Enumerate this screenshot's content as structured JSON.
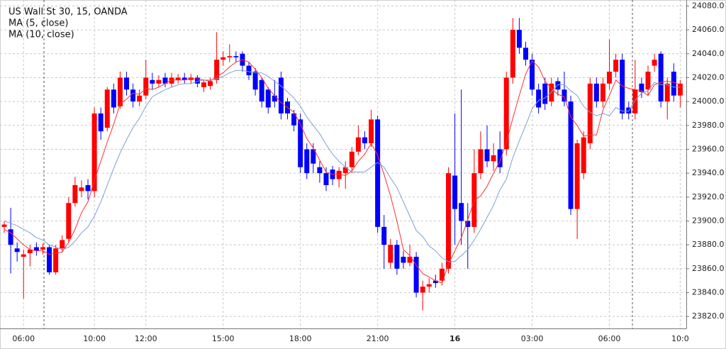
{
  "chart_data": {
    "type": "candlestick",
    "title": "US Wall St 30, 15, OANDA",
    "categories": [
      null,
      null,
      null,
      "06:00",
      null,
      null,
      null,
      null,
      null,
      null,
      null,
      null,
      null,
      null,
      "10:00",
      null,
      null,
      null,
      null,
      null,
      null,
      null,
      "12:00",
      null,
      null,
      null,
      null,
      null,
      null,
      null,
      null,
      null,
      null,
      null,
      "15:00",
      null,
      null,
      null,
      null,
      null,
      null,
      null,
      null,
      null,
      null,
      null,
      "18:00",
      null,
      null,
      null,
      null,
      null,
      null,
      null,
      null,
      null,
      null,
      null,
      "21:00",
      null,
      null,
      null,
      null,
      null,
      null,
      null,
      null,
      null,
      null,
      null,
      "16",
      null,
      null,
      null,
      null,
      null,
      null,
      null,
      null,
      null,
      null,
      null,
      "03:00",
      null,
      null,
      null,
      null,
      null,
      null,
      null,
      null,
      null,
      null,
      null,
      "06:00",
      null,
      null,
      null,
      null,
      null,
      null,
      null,
      null,
      null,
      null,
      "10:0"
    ],
    "open": [
      23895,
      23893,
      23877,
      23870,
      23873,
      23878,
      23876,
      23878,
      23857,
      23877,
      23885,
      23915,
      23925,
      23930,
      23925,
      23990,
      23978,
      24010,
      23996,
      24020,
      24010,
      24000,
      24005,
      24018,
      24015,
      24020,
      24015,
      24018,
      24020,
      24018,
      24020,
      24012,
      24013,
      24018,
      24035,
      24037,
      24038,
      24040,
      24030,
      24025,
      24018,
      24010,
      24005,
      24020,
      24000,
      23990,
      23985,
      23960,
      23960,
      23945,
      23940,
      23943,
      23935,
      23940,
      23945,
      23958,
      23970,
      23965,
      23985,
      23895,
      23865,
      23880,
      23870,
      23865,
      23870,
      23840,
      23845,
      23850,
      23850,
      23860,
      23938,
      23915,
      23900,
      23895,
      23940,
      23960,
      23950,
      23960,
      23960,
      24020,
      24060,
      24045,
      24035,
      24010,
      24015,
      24000,
      24017,
      24010,
      24000,
      23910,
      23940,
      23965,
      24015,
      24000,
      24015,
      24025,
      24035,
      23995,
      23990,
      24015,
      24010,
      24030,
      24040,
      24000,
      24025,
      24005
    ],
    "high": [
      23900,
      23911,
      23882,
      23876,
      23880,
      23882,
      23881,
      23880,
      23880,
      23888,
      23920,
      23937,
      23934,
      23935,
      23995,
      23995,
      24012,
      24015,
      24025,
      24025,
      24015,
      24010,
      24035,
      24024,
      24022,
      24024,
      24024,
      24023,
      24024,
      24023,
      24022,
      24018,
      24020,
      24058,
      24042,
      24048,
      24042,
      24042,
      24033,
      24028,
      24020,
      24012,
      24018,
      24025,
      24003,
      23993,
      23990,
      23965,
      23965,
      23950,
      23945,
      23946,
      23945,
      23950,
      23962,
      23980,
      23975,
      23993,
      23988,
      23905,
      23885,
      23884,
      23875,
      23880,
      23874,
      23850,
      23852,
      23855,
      23865,
      23945,
      23990,
      24010,
      23915,
      23960,
      23975,
      23980,
      23965,
      23975,
      24025,
      24070,
      24070,
      24050,
      24040,
      24015,
      24020,
      24020,
      24020,
      24025,
      24005,
      23968,
      23975,
      24020,
      24020,
      24020,
      24052,
      24040,
      24040,
      24000,
      24035,
      24020,
      24030,
      24040,
      24042,
      24020,
      24032,
      24018
    ],
    "low": [
      23890,
      23856,
      23866,
      23835,
      23862,
      23871,
      23872,
      23855,
      23855,
      23874,
      23882,
      23912,
      23920,
      23918,
      23920,
      23968,
      23975,
      23990,
      23994,
      24005,
      23995,
      23996,
      24002,
      24010,
      24012,
      24012,
      24012,
      24015,
      24015,
      24015,
      24012,
      24008,
      24010,
      24015,
      24030,
      24033,
      24033,
      24025,
      24018,
      24005,
      23995,
      23990,
      23995,
      23985,
      23985,
      23975,
      23940,
      23935,
      23940,
      23932,
      23925,
      23930,
      23928,
      23927,
      23940,
      23955,
      23960,
      23962,
      23890,
      23860,
      23860,
      23855,
      23860,
      23862,
      23836,
      23825,
      23840,
      23844,
      23846,
      23856,
      23880,
      23880,
      23860,
      23890,
      23935,
      23945,
      23942,
      23940,
      23955,
      24015,
      24040,
      24030,
      24005,
      23990,
      23993,
      23996,
      24005,
      23996,
      23905,
      23885,
      23935,
      23960,
      23995,
      23995,
      24010,
      24020,
      23985,
      23985,
      23985,
      24003,
      24005,
      24025,
      23995,
      23985,
      24000,
      23995
    ],
    "close": [
      23897,
      23880,
      23874,
      23872,
      23876,
      23875,
      23878,
      23857,
      23877,
      23884,
      23915,
      23930,
      23928,
      23925,
      23990,
      23975,
      24010,
      23995,
      24020,
      24010,
      24000,
      24005,
      24020,
      24015,
      24018,
      24015,
      24020,
      24020,
      24018,
      24020,
      24015,
      24016,
      24017,
      24035,
      24037,
      24038,
      24037,
      24030,
      24022,
      24010,
      24000,
      23995,
      24000,
      23990,
      23990,
      23980,
      23945,
      23940,
      23948,
      23940,
      23930,
      23935,
      23942,
      23945,
      23958,
      23970,
      23965,
      23985,
      23895,
      23880,
      23880,
      23860,
      23865,
      23870,
      23840,
      23845,
      23847,
      23848,
      23860,
      23940,
      23910,
      23900,
      23895,
      23940,
      23960,
      23950,
      23955,
      23945,
      24020,
      24060,
      24045,
      24035,
      24010,
      23995,
      23998,
      24015,
      24010,
      24000,
      23910,
      23965,
      23970,
      24015,
      24000,
      24015,
      24025,
      24035,
      23990,
      23990,
      24010,
      24008,
      24025,
      24035,
      24000,
      24015,
      24005,
      24015
    ],
    "up_color": "#ff0000",
    "down_color": "#0000ff",
    "series": [
      {
        "name": "MA (5, close)",
        "color": "#ff3030",
        "values": [
          23893,
          23890,
          23885,
          23880,
          23876,
          23875,
          23875,
          23872,
          23873,
          23874,
          23882,
          23893,
          23907,
          23916,
          23934,
          23950,
          23966,
          23981,
          23998,
          24002,
          24007,
          24006,
          24011,
          24010,
          24012,
          24015,
          24018,
          24018,
          24018,
          24019,
          24019,
          24018,
          24017,
          24021,
          24024,
          24029,
          24033,
          24035,
          24033,
          24027,
          24020,
          24011,
          24005,
          23999,
          23995,
          23991,
          23981,
          23969,
          23961,
          23951,
          23941,
          23939,
          23939,
          23938,
          23942,
          23950,
          23956,
          23965,
          23955,
          23939,
          23921,
          23900,
          23876,
          23871,
          23863,
          23856,
          23853,
          23850,
          23848,
          23864,
          23875,
          23886,
          23901,
          23917,
          23921,
          23929,
          23940,
          23950,
          23966,
          23986,
          24005,
          24023,
          24034,
          24029,
          24017,
          24011,
          24006,
          24004,
          23987,
          23980,
          23971,
          23972,
          23972,
          23993,
          24005,
          24018,
          24013,
          24011,
          24010,
          24009,
          24005,
          24014,
          24016,
          24017,
          24016,
          24014
        ]
      },
      {
        "name": "MA (10, close)",
        "color": "#7f9fd0",
        "values": [
          23900,
          23898,
          23896,
          23893,
          23890,
          23886,
          23884,
          23880,
          23878,
          23876,
          23878,
          23883,
          23890,
          23895,
          23904,
          23916,
          23930,
          23944,
          23957,
          23968,
          23978,
          23986,
          23996,
          24004,
          24007,
          24010,
          24012,
          24014,
          24015,
          24015,
          24017,
          24018,
          24018,
          24019,
          24021,
          24024,
          24026,
          24026,
          24025,
          24024,
          24024,
          24021,
          24017,
          24013,
          24008,
          24003,
          23996,
          23987,
          23980,
          23973,
          23964,
          23956,
          23950,
          23945,
          23941,
          23941,
          23941,
          23945,
          23949,
          23945,
          23936,
          23928,
          23916,
          23904,
          23892,
          23887,
          23879,
          23875,
          23869,
          23866,
          23866,
          23871,
          23876,
          23884,
          23893,
          23903,
          23913,
          23926,
          23935,
          23953,
          23967,
          23980,
          23994,
          24001,
          24003,
          24008,
          24014,
          24014,
          24009,
          24005,
          23996,
          23991,
          23988,
          23990,
          23988,
          23995,
          23992,
          23992,
          24001,
          24007,
          24009,
          24016,
          24014,
          24014,
          24012,
          24012
        ]
      }
    ],
    "ylim": [
      23810,
      24085
    ],
    "yticks": [
      {
        "value": 23820,
        "label": "23820.0"
      },
      {
        "value": 23840,
        "label": "23840.0"
      },
      {
        "value": 23860,
        "label": "23860.0"
      },
      {
        "value": 23880,
        "label": "23880.0"
      },
      {
        "value": 23900,
        "label": "23900.0"
      },
      {
        "value": 23920,
        "label": "23920.0"
      },
      {
        "value": 23940,
        "label": "23940.0"
      },
      {
        "value": 23960,
        "label": "23960.0"
      },
      {
        "value": 23980,
        "label": "23980.0"
      },
      {
        "value": 24000,
        "label": "24000.0"
      },
      {
        "value": 24020,
        "label": "24020.0"
      },
      {
        "value": 24040,
        "label": "24040.0"
      },
      {
        "value": 24060,
        "label": "24060.0"
      },
      {
        "value": 24080,
        "label": "24080.0"
      }
    ],
    "grid": true
  }
}
